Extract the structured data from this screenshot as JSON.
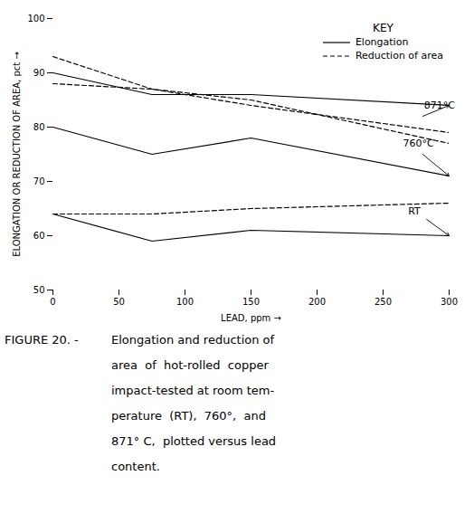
{
  "chart_data": {
    "type": "line",
    "xlabel": "LEAD, ppm",
    "ylabel": "ELONGATION OR REDUCTION OF AREA, pct",
    "xlim": [
      0,
      300
    ],
    "ylim": [
      50,
      100
    ],
    "xticks": [
      0,
      50,
      100,
      150,
      200,
      250,
      300
    ],
    "yticks": [
      50,
      60,
      70,
      80,
      90,
      100
    ],
    "x": [
      0,
      75,
      150,
      300
    ],
    "series": [
      {
        "name": "Elongation",
        "color": "black",
        "line_style": "solid",
        "values": [
          90,
          86,
          86,
          84
        ]
      },
      {
        "name": "Elongation",
        "color": "black",
        "line_style": "solid",
        "values": [
          80,
          75,
          78,
          71
        ]
      },
      {
        "name": "Elongation",
        "color": "black",
        "line_style": "solid",
        "values": [
          64,
          59,
          61,
          60
        ]
      },
      {
        "name": "Reduction of area",
        "color": "black",
        "line_style": "dashed",
        "values": [
          93,
          87,
          85,
          77
        ]
      },
      {
        "name": "Reduction of area",
        "color": "black",
        "line_style": "dashed",
        "values": [
          88,
          87,
          84,
          79
        ]
      },
      {
        "name": "Reduction of area",
        "color": "black",
        "line_style": "dashed",
        "values": [
          64,
          64,
          65,
          66
        ]
      }
    ],
    "legend": "upper right",
    "legend_title": "KEY",
    "annotations": [
      {
        "text": "871°C",
        "x": 281,
        "y": 83.5,
        "arrow_from": [
          280,
          82
        ],
        "arrow_to": [
          300,
          84
        ]
      },
      {
        "text": "760°C",
        "x": 265,
        "y": 76.5,
        "arrow_from": [
          280,
          75
        ],
        "arrow_to": [
          300,
          71
        ]
      },
      {
        "text": "RT",
        "x": 269,
        "y": 64,
        "arrow_from": [
          283,
          63
        ],
        "arrow_to": [
          300,
          60
        ]
      }
    ],
    "caption_label": "FIGURE 20. - ",
    "caption_lines": [
      "Elongation and reduction of",
      "area  of  hot-rolled  copper",
      "impact-tested at room tem-",
      "perature  (RT),  760°,  and",
      "871° C,  plotted versus lead",
      "content."
    ]
  }
}
